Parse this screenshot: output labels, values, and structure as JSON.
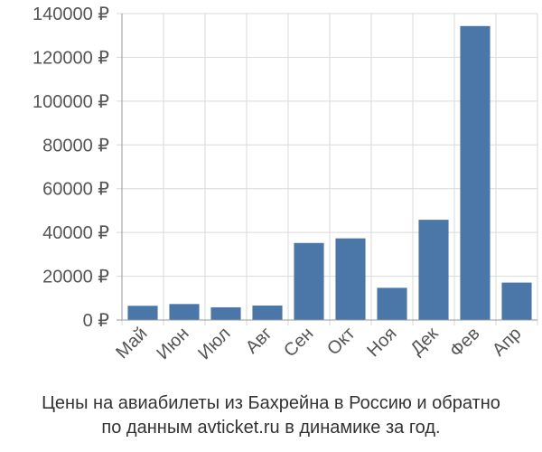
{
  "chart_data": {
    "type": "bar",
    "categories": [
      "Май",
      "Июн",
      "Июл",
      "Авг",
      "Сен",
      "Окт",
      "Ноя",
      "Дек",
      "Фев",
      "Апр"
    ],
    "values": [
      6500,
      7300,
      5800,
      6600,
      35200,
      37300,
      14700,
      45800,
      134300,
      17100
    ],
    "y_ticks": [
      "0 ₽",
      "20000 ₽",
      "40000 ₽",
      "60000 ₽",
      "80000 ₽",
      "100000 ₽",
      "120000 ₽",
      "140000 ₽"
    ],
    "ylim": [
      0,
      140000
    ],
    "grid": true,
    "bar_color": "#4a76a8",
    "grid_color": "#d9d9d9",
    "axis_color": "#999999",
    "text_color": "#555555"
  },
  "caption": {
    "line1": "Цены на авиабилеты из Бахрейна в Россию и обратно",
    "line2": "по данным avticket.ru в динамике за год."
  }
}
